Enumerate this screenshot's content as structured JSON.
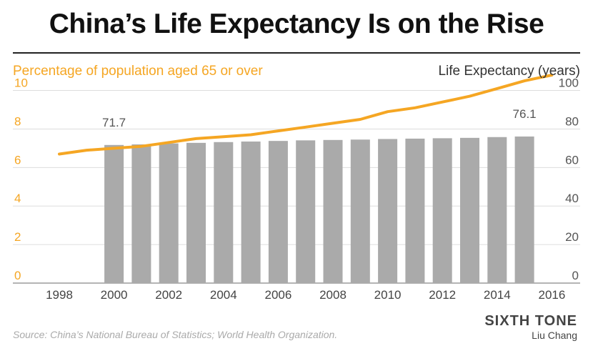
{
  "title": "China’s Life Expectancy Is on the Rise",
  "source": "Source: China’s National Bureau of Statistics; World Health Organization.",
  "brand": "SIXTH TONE",
  "author": "Liu Chang",
  "colors": {
    "line": "#f5a623",
    "bar": "#aaaaaa",
    "grid": "#dddddd",
    "axis_text": "#555555",
    "left_axis_text": "#f5a623"
  },
  "chart_data": {
    "type": "bar+line",
    "x": [
      1998,
      1999,
      2000,
      2001,
      2002,
      2003,
      2004,
      2005,
      2006,
      2007,
      2008,
      2009,
      2010,
      2011,
      2012,
      2013,
      2014,
      2015,
      2016
    ],
    "xticks": [
      "1998",
      "2000",
      "2002",
      "2004",
      "2006",
      "2008",
      "2010",
      "2012",
      "2014",
      "2016"
    ],
    "left_axis": {
      "label": "Percentage of population aged 65 or over",
      "range": [
        0,
        10.8
      ],
      "ticks": [
        "0",
        "2",
        "4",
        "6",
        "8",
        "10"
      ]
    },
    "right_axis": {
      "label": "Life Expectancy (years)",
      "range": [
        0,
        108
      ],
      "ticks": [
        "0",
        "20",
        "40",
        "60",
        "80",
        "100"
      ]
    },
    "series": [
      {
        "type": "bar",
        "axis": "right",
        "x": [
          2000,
          2001,
          2002,
          2003,
          2004,
          2005,
          2006,
          2007,
          2008,
          2009,
          2010,
          2011,
          2012,
          2013,
          2014,
          2015
        ],
        "values": [
          71.7,
          72.0,
          72.5,
          72.8,
          73.2,
          73.5,
          73.8,
          74.1,
          74.3,
          74.5,
          74.8,
          75.0,
          75.2,
          75.4,
          75.8,
          76.1
        ]
      },
      {
        "type": "line",
        "axis": "left",
        "x": [
          1998,
          1999,
          2000,
          2001,
          2002,
          2003,
          2004,
          2005,
          2006,
          2007,
          2008,
          2009,
          2010,
          2011,
          2012,
          2013,
          2014,
          2015,
          2016
        ],
        "values": [
          6.7,
          6.9,
          7.0,
          7.1,
          7.3,
          7.5,
          7.6,
          7.7,
          7.9,
          8.1,
          8.3,
          8.5,
          8.9,
          9.1,
          9.4,
          9.7,
          10.1,
          10.5,
          10.8
        ]
      }
    ],
    "data_labels": [
      {
        "x": 2000,
        "text": "71.7"
      },
      {
        "x": 2015,
        "text": "76.1"
      }
    ],
    "grid": true,
    "legend": "none"
  }
}
